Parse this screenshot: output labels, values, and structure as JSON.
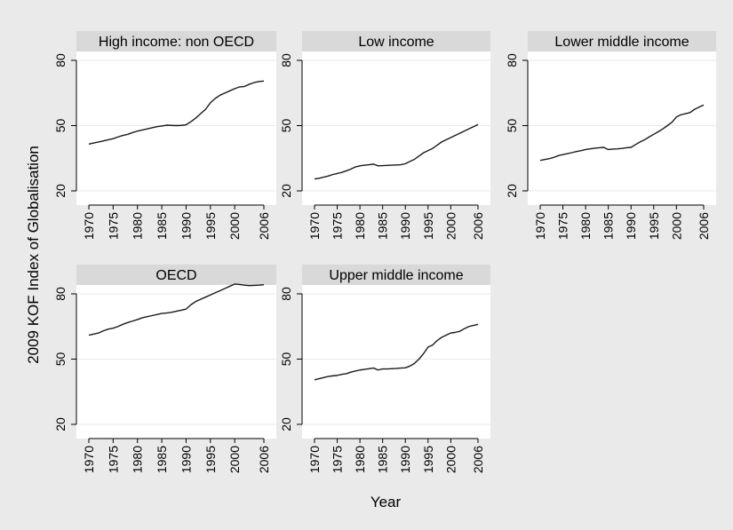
{
  "colors": {
    "background": "#eaeaea",
    "plot_area": "#ffffff",
    "title_strip": "#d9d9d9",
    "line": "#1a1a1a",
    "grid": "#eaeaea"
  },
  "chart_data": {
    "type": "line",
    "ylabel": "2009 KOF Index of Globalisation",
    "xlabel": "Year",
    "grid": true,
    "x_ticks": [
      1970,
      1975,
      1980,
      1985,
      1990,
      1995,
      2000,
      2006
    ],
    "y_ticks": [
      20,
      50,
      80
    ],
    "xlim": [
      1970,
      2006
    ],
    "ylim": [
      20,
      80
    ],
    "x": [
      1970,
      1971,
      1972,
      1973,
      1974,
      1975,
      1976,
      1977,
      1978,
      1979,
      1980,
      1981,
      1982,
      1983,
      1984,
      1985,
      1986,
      1987,
      1988,
      1989,
      1990,
      1991,
      1992,
      1993,
      1994,
      1995,
      1996,
      1997,
      1998,
      1999,
      2000,
      2001,
      2002,
      2003,
      2004,
      2005,
      2006
    ],
    "panels": [
      {
        "title": "High income: non OECD",
        "values": [
          41.5,
          42,
          42.5,
          43,
          43.5,
          44,
          44.8,
          45.5,
          46,
          46.8,
          47.5,
          48,
          48.5,
          49,
          49.5,
          49.8,
          50.2,
          50.1,
          50,
          50.1,
          50.4,
          51.8,
          53.5,
          55.5,
          57.5,
          60.5,
          62.5,
          64,
          65,
          66,
          67,
          67.8,
          68,
          69,
          69.8,
          70.3,
          70.5
        ]
      },
      {
        "title": "Low income",
        "values": [
          25.5,
          25.8,
          26.3,
          26.8,
          27.5,
          28,
          28.5,
          29.2,
          30,
          31,
          31.5,
          31.8,
          32,
          32.3,
          31.5,
          31.6,
          31.7,
          31.8,
          31.9,
          32,
          32.5,
          33.5,
          34.5,
          36,
          37.5,
          38.5,
          39.5,
          41,
          42.5,
          43.5,
          44.5,
          45.5,
          46.5,
          47.5,
          48.5,
          49.5,
          50.5
        ]
      },
      {
        "title": "Lower middle income",
        "values": [
          34,
          34.4,
          34.8,
          35.4,
          36.2,
          36.7,
          37.1,
          37.6,
          38.1,
          38.5,
          39,
          39.3,
          39.6,
          39.8,
          40,
          39,
          39.2,
          39.3,
          39.5,
          39.8,
          40,
          41.3,
          42.5,
          43.5,
          44.8,
          46,
          47.2,
          48.5,
          50,
          51.5,
          54,
          55,
          55.5,
          56,
          57.5,
          58.5,
          59.5
        ]
      },
      {
        "title": "OECD",
        "values": [
          61,
          61.5,
          62,
          63,
          63.8,
          64.2,
          65,
          66,
          66.8,
          67.5,
          68.2,
          69,
          69.5,
          70,
          70.5,
          71,
          71.2,
          71.5,
          72,
          72.5,
          73,
          75,
          76.5,
          77.5,
          78.5,
          79.5,
          80.5,
          81.5,
          82.5,
          83.5,
          84.5,
          84.3,
          84,
          83.8,
          83.9,
          84,
          84.2
        ]
      },
      {
        "title": "Upper middle income",
        "values": [
          40.5,
          41,
          41.5,
          42,
          42.3,
          42.5,
          43,
          43.3,
          44,
          44.5,
          45,
          45.3,
          45.6,
          45.9,
          45,
          45.5,
          45.5,
          45.6,
          45.7,
          45.9,
          46,
          46.8,
          48,
          50,
          52.5,
          55.5,
          56.5,
          58.5,
          60,
          61,
          62,
          62.3,
          62.8,
          64,
          65,
          65.5,
          66
        ]
      }
    ]
  }
}
